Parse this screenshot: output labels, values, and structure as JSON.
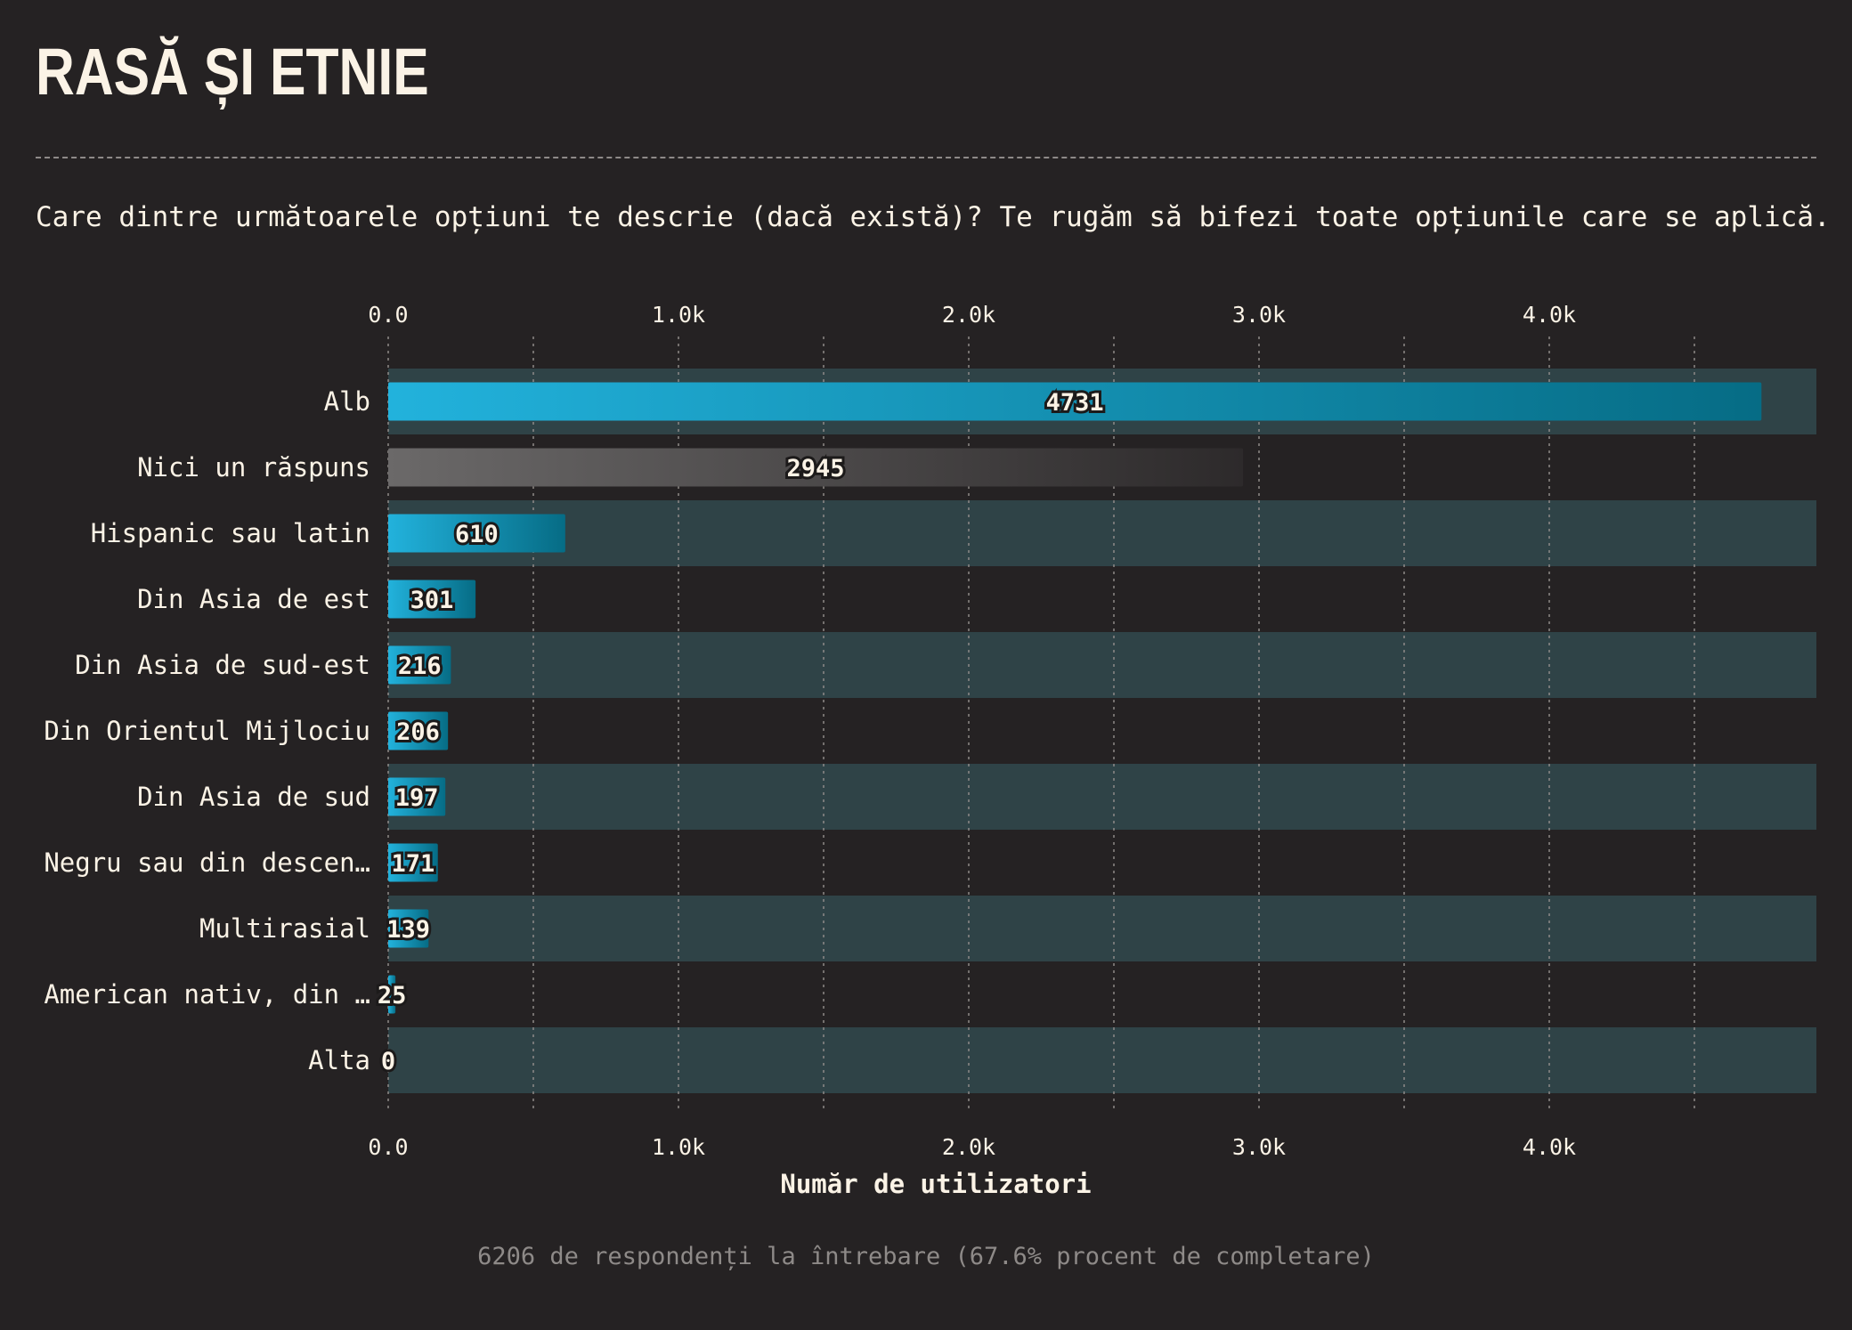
{
  "title": "RASĂ ȘI ETNIE",
  "question": "Care dintre următoarele opțiuni te descrie (dacă există)? Te rugăm să bifezi toate opțiunile care se aplică.",
  "footnote": "6206 de respondenți la întrebare (67.6% procent de completare)",
  "colors": {
    "background": "#252223",
    "row_band": "#2f4347",
    "bar_start": "#22b2dc",
    "bar_end": "#066c85",
    "no_answer_start": "#6b6969",
    "no_answer_end": "#2d2a2b",
    "grid": "#8e8a88",
    "text": "#fbf3e6"
  },
  "chart_data": {
    "type": "bar",
    "orientation": "horizontal",
    "categories": [
      "Alb",
      "Nici un răspuns",
      "Hispanic sau latin",
      "Din Asia de est",
      "Din Asia de sud-est",
      "Din Orientul Mijlociu",
      "Din Asia de sud",
      "Negru sau din descen…",
      "Multirasial",
      "American nativ, din …",
      "Alta"
    ],
    "values": [
      4731,
      2945,
      610,
      301,
      216,
      206,
      197,
      171,
      139,
      25,
      0
    ],
    "highlight_category": "Nici un răspuns",
    "xlabel": "Număr de utilizatori",
    "xlim": [
      0,
      4920
    ],
    "ticks": [
      0,
      1000,
      2000,
      3000,
      4000
    ],
    "tick_labels": [
      "0.0",
      "1.0k",
      "2.0k",
      "3.0k",
      "4.0k"
    ],
    "minor_gridlines": [
      500,
      1500,
      2500,
      3500,
      4500
    ],
    "grid": true,
    "axis_labels_top_and_bottom": true
  }
}
